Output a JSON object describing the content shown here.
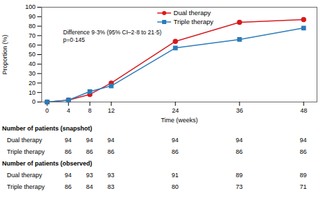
{
  "chart_data": {
    "type": "line",
    "x": [
      0,
      4,
      8,
      12,
      24,
      36,
      48
    ],
    "series": [
      {
        "name": "Dual therapy",
        "color": "#d7191c",
        "marker": "circle",
        "values": [
          0,
          2,
          8,
          20,
          64,
          84,
          87
        ]
      },
      {
        "name": "Triple therapy",
        "color": "#2b7bb9",
        "marker": "square",
        "values": [
          0,
          2,
          11,
          17,
          57,
          66,
          78
        ]
      }
    ],
    "xlabel": "Time (weeks)",
    "ylabel": "Proportion (%)",
    "xlim": [
      -1,
      50.5
    ],
    "xticks": [
      0,
      4,
      8,
      12,
      24,
      36,
      48
    ],
    "ylim": [
      0,
      100
    ],
    "yticks": [
      0,
      10,
      20,
      30,
      40,
      50,
      60,
      70,
      80,
      90,
      100
    ],
    "grid": false,
    "legend": "top",
    "annotations": [
      {
        "x": 3,
        "y": 76,
        "text": "Difference 9·3% (95% CI–2·8 to 21·5)"
      },
      {
        "x": 3,
        "y": 68,
        "text": "p=0·145"
      }
    ],
    "table": {
      "columns": [
        4,
        8,
        12,
        24,
        36,
        48
      ],
      "groups": [
        {
          "title": "Number of patients (snapshot)",
          "rows": [
            {
              "name": "Dual therapy",
              "values": [
                94,
                94,
                94,
                94,
                94,
                94
              ]
            },
            {
              "name": "Triple therapy",
              "values": [
                86,
                86,
                86,
                86,
                86,
                86
              ]
            }
          ]
        },
        {
          "title": "Number of patients (observed)",
          "rows": [
            {
              "name": "Dual therapy",
              "values": [
                94,
                93,
                93,
                91,
                89,
                89
              ]
            },
            {
              "name": "Triple therapy",
              "values": [
                86,
                84,
                83,
                80,
                73,
                71
              ]
            }
          ]
        }
      ]
    }
  }
}
